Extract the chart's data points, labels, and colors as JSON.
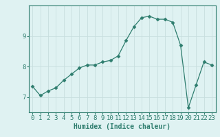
{
  "x": [
    0,
    1,
    2,
    3,
    4,
    5,
    6,
    7,
    8,
    9,
    10,
    11,
    12,
    13,
    14,
    15,
    16,
    17,
    18,
    19,
    20,
    21,
    22,
    23
  ],
  "y": [
    7.35,
    7.05,
    7.2,
    7.3,
    7.55,
    7.75,
    7.95,
    8.05,
    8.05,
    8.15,
    8.2,
    8.35,
    8.85,
    9.3,
    9.6,
    9.65,
    9.55,
    9.55,
    9.45,
    8.7,
    6.65,
    7.4,
    8.15,
    8.05
  ],
  "line_color": "#2e7d6e",
  "marker": "D",
  "marker_size": 2.5,
  "bg_color": "#dff2f2",
  "grid_color": "#c8dede",
  "axis_color": "#2e7d6e",
  "xlabel": "Humidex (Indice chaleur)",
  "xlabel_fontsize": 7,
  "tick_fontsize": 6.5,
  "ylim": [
    6.5,
    10.0
  ],
  "xlim": [
    -0.5,
    23.5
  ],
  "yticks": [
    7,
    8,
    9
  ],
  "xticks": [
    0,
    1,
    2,
    3,
    4,
    5,
    6,
    7,
    8,
    9,
    10,
    11,
    12,
    13,
    14,
    15,
    16,
    17,
    18,
    19,
    20,
    21,
    22,
    23
  ]
}
